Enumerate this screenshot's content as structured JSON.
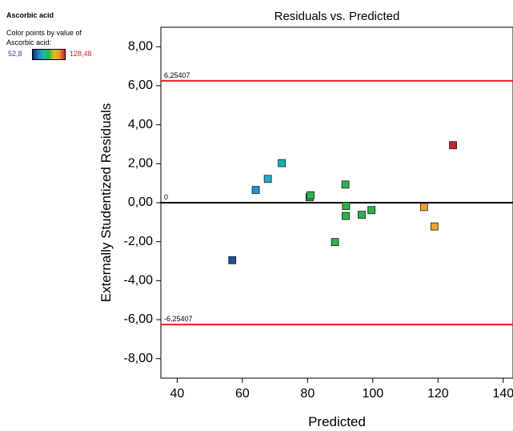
{
  "sidebar": {
    "title": "Ascorbic acid",
    "caption_line1": "Color points by value of",
    "caption_line2": "Ascorbic acid:",
    "legend_min": "52,8",
    "legend_max": "128,48"
  },
  "chart_data": {
    "type": "scatter",
    "title": "Residuals vs. Predicted",
    "xlabel": "Predicted",
    "ylabel": "Externally Studentized Residuals",
    "xlim": [
      35,
      143
    ],
    "ylim": [
      -9,
      9
    ],
    "x_ticks": [
      40,
      60,
      80,
      100,
      120,
      140
    ],
    "y_ticks": [
      -8,
      -6,
      -4,
      -2,
      0,
      2,
      4,
      6,
      8
    ],
    "x_tick_labels": [
      "40",
      "60",
      "80",
      "100",
      "120",
      "140"
    ],
    "y_tick_labels": [
      "-8,00",
      "-6,00",
      "-4,00",
      "-2,00",
      "0,00",
      "2,00",
      "4,00",
      "6,00",
      "8,00"
    ],
    "reference_lines": [
      {
        "value": 6.25407,
        "label": "6,25407",
        "color": "#e02020"
      },
      {
        "value": 0,
        "label": "0",
        "color": "#000000"
      },
      {
        "value": -6.25407,
        "label": "-6,25407",
        "color": "#e02020"
      }
    ],
    "grid": false,
    "points": [
      {
        "x": 56.9,
        "y": -2.95,
        "color": "#1b4f9e"
      },
      {
        "x": 64.1,
        "y": 0.65,
        "color": "#2a8fd1"
      },
      {
        "x": 67.8,
        "y": 1.22,
        "color": "#2aa6d0"
      },
      {
        "x": 72.1,
        "y": 2.03,
        "color": "#19b3aa"
      },
      {
        "x": 80.6,
        "y": 0.28,
        "color": "#23b371"
      },
      {
        "x": 80.9,
        "y": 0.38,
        "color": "#2fb24a"
      },
      {
        "x": 88.4,
        "y": -2.02,
        "color": "#2fb24a"
      },
      {
        "x": 91.6,
        "y": 0.93,
        "color": "#2fb24a"
      },
      {
        "x": 91.8,
        "y": -0.17,
        "color": "#2fb24a"
      },
      {
        "x": 91.7,
        "y": -0.68,
        "color": "#2fb24a"
      },
      {
        "x": 96.6,
        "y": -0.62,
        "color": "#2fb24a"
      },
      {
        "x": 99.6,
        "y": -0.38,
        "color": "#2fb24a"
      },
      {
        "x": 115.7,
        "y": -0.22,
        "color": "#f0a033"
      },
      {
        "x": 118.9,
        "y": -1.22,
        "color": "#f0a033"
      },
      {
        "x": 124.6,
        "y": 2.95,
        "color": "#d0202a"
      }
    ]
  }
}
